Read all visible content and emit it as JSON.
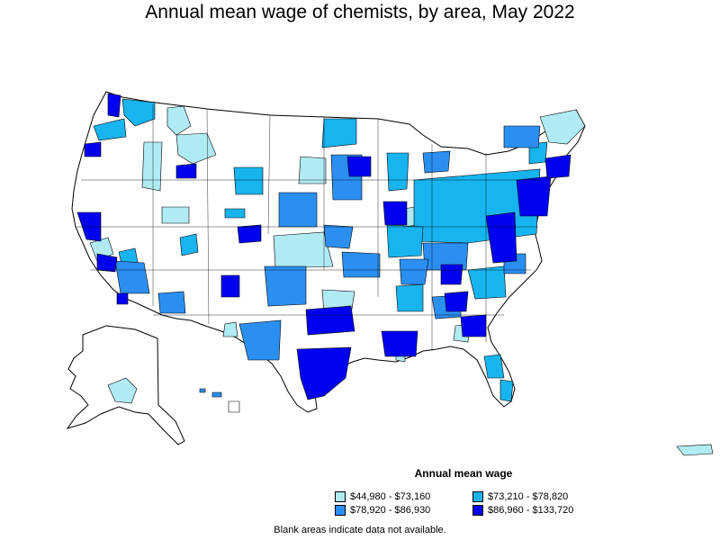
{
  "title": "Annual mean wage of chemists, by area, May 2022",
  "legend": {
    "title": "Annual mean wage",
    "items": [
      {
        "label": "$44,980 - $73,160",
        "color": "#b0eaf3"
      },
      {
        "label": "$73,210 - $78,820",
        "color": "#18b4f0"
      },
      {
        "label": "$78,920 - $86,930",
        "color": "#2b8ff2"
      },
      {
        "label": "$86,960 - $133,720",
        "color": "#0000f0"
      }
    ]
  },
  "note": "Blank areas indicate data not available.",
  "colors": {
    "no_data": "#ffffff",
    "border": "#000000",
    "band1": "#b0eaf3",
    "band2": "#18b4f0",
    "band3": "#2b8ff2",
    "band4": "#0000f0"
  }
}
